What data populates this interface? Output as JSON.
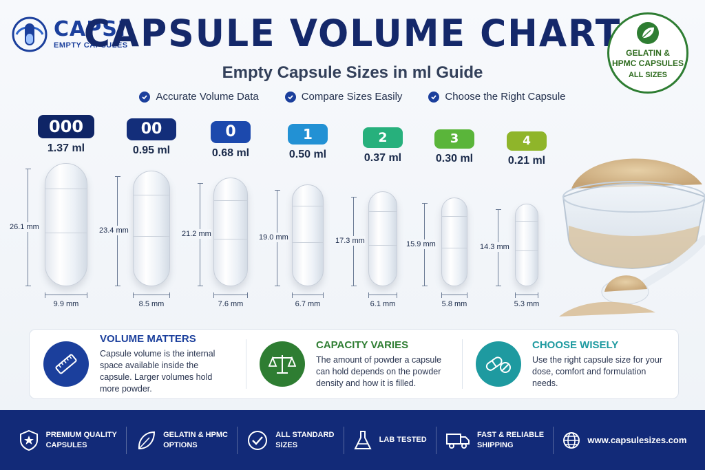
{
  "brand": {
    "name": "CAPSI",
    "sub": "EMPTY CAPSULES"
  },
  "title": "CAPSULE VOLUME CHART",
  "subtitle": "Empty Capsule Sizes in ml Guide",
  "features": [
    "Accurate Volume Data",
    "Compare Sizes Easily",
    "Choose the Right Capsule"
  ],
  "badge": {
    "line1": "GELATIN &",
    "line2": "HPMC CAPSULES",
    "line3": "ALL SIZES"
  },
  "sizes": [
    {
      "size": "000",
      "volume": "1.37 ml",
      "length": "26.1 mm",
      "diameter": "9.9 mm",
      "color": "#0f2566"
    },
    {
      "size": "00",
      "volume": "0.95 ml",
      "length": "23.4 mm",
      "diameter": "8.5 mm",
      "color": "#132e7a"
    },
    {
      "size": "0",
      "volume": "0.68 ml",
      "length": "21.2 mm",
      "diameter": "7.6 mm",
      "color": "#1c49ad"
    },
    {
      "size": "1",
      "volume": "0.50 ml",
      "length": "19.0 mm",
      "diameter": "6.7 mm",
      "color": "#2291d4"
    },
    {
      "size": "2",
      "volume": "0.37 ml",
      "length": "17.3 mm",
      "diameter": "6.1 mm",
      "color": "#27b07c"
    },
    {
      "size": "3",
      "volume": "0.30 ml",
      "length": "15.9 mm",
      "diameter": "5.8 mm",
      "color": "#5ab53a"
    },
    {
      "size": "4",
      "volume": "0.21 ml",
      "length": "14.3 mm",
      "diameter": "5.3 mm",
      "color": "#8fb52a"
    }
  ],
  "info": [
    {
      "title": "VOLUME MATTERS",
      "text": "Capsule volume is the internal space available inside the capsule. Larger volumes hold more powder.",
      "color": "#1b3f9c",
      "icon": "ruler-icon"
    },
    {
      "title": "CAPACITY VARIES",
      "text": "The amount of powder a capsule can hold depends on the powder density and how it is filled.",
      "color": "#2e7d32",
      "icon": "scale-icon"
    },
    {
      "title": "CHOOSE WISELY",
      "text": "Use the right capsule size for your dose, comfort and formulation needs.",
      "color": "#1e9aa0",
      "icon": "capsule-icon"
    }
  ],
  "footer": [
    {
      "l1": "PREMIUM QUALITY",
      "l2": "CAPSULES",
      "icon": "shield-star-icon"
    },
    {
      "l1": "GELATIN & HPMC",
      "l2": "OPTIONS",
      "icon": "leaf-icon"
    },
    {
      "l1": "ALL STANDARD",
      "l2": "SIZES",
      "icon": "check-circle-icon"
    },
    {
      "l1": "LAB TESTED",
      "l2": "",
      "icon": "flask-icon"
    },
    {
      "l1": "FAST & RELIABLE",
      "l2": "SHIPPING",
      "icon": "truck-icon"
    }
  ],
  "website": "www.capsulesizes.com"
}
